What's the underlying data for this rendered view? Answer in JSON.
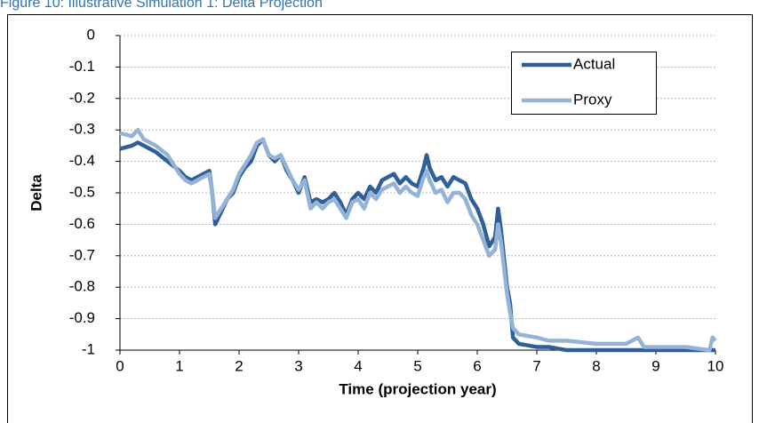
{
  "chart_data": {
    "type": "line",
    "title": "Figure 10: Illustrative Simulation 1: Delta Projection",
    "x_label": "Time (projection year)",
    "y_label": "Delta",
    "x": [
      0,
      0.2,
      0.3,
      0.4,
      0.6,
      0.8,
      1.0,
      1.1,
      1.2,
      1.4,
      1.5,
      1.55,
      1.6,
      1.7,
      1.8,
      1.9,
      2.0,
      2.1,
      2.2,
      2.3,
      2.4,
      2.5,
      2.6,
      2.7,
      2.8,
      2.9,
      3.0,
      3.1,
      3.2,
      3.3,
      3.4,
      3.5,
      3.6,
      3.7,
      3.8,
      3.9,
      4.0,
      4.1,
      4.2,
      4.3,
      4.4,
      4.5,
      4.6,
      4.7,
      4.8,
      4.9,
      5.0,
      5.1,
      5.15,
      5.2,
      5.3,
      5.4,
      5.5,
      5.6,
      5.7,
      5.8,
      5.9,
      6.0,
      6.1,
      6.2,
      6.3,
      6.35,
      6.4,
      6.5,
      6.55,
      6.6,
      6.7,
      7.0,
      7.2,
      7.5,
      8.0,
      8.5,
      8.7,
      8.8,
      9.0,
      9.5,
      9.9,
      9.95,
      10
    ],
    "series": [
      {
        "name": "Actual",
        "color": "#2f5f98",
        "values": [
          -0.36,
          -0.35,
          -0.34,
          -0.35,
          -0.37,
          -0.4,
          -0.43,
          -0.45,
          -0.46,
          -0.44,
          -0.43,
          -0.5,
          -0.6,
          -0.56,
          -0.52,
          -0.5,
          -0.45,
          -0.42,
          -0.4,
          -0.35,
          -0.33,
          -0.38,
          -0.4,
          -0.38,
          -0.43,
          -0.46,
          -0.5,
          -0.45,
          -0.53,
          -0.52,
          -0.53,
          -0.52,
          -0.5,
          -0.53,
          -0.57,
          -0.52,
          -0.5,
          -0.52,
          -0.48,
          -0.5,
          -0.46,
          -0.45,
          -0.44,
          -0.47,
          -0.45,
          -0.47,
          -0.48,
          -0.42,
          -0.38,
          -0.42,
          -0.46,
          -0.45,
          -0.48,
          -0.45,
          -0.46,
          -0.47,
          -0.52,
          -0.55,
          -0.6,
          -0.67,
          -0.64,
          -0.55,
          -0.62,
          -0.8,
          -0.85,
          -0.96,
          -0.98,
          -0.99,
          -0.99,
          -1,
          -1,
          -1,
          -1,
          -1,
          -1,
          -1,
          -1,
          -1,
          -1
        ]
      },
      {
        "name": "Proxy",
        "color": "#95b3d7",
        "values": [
          -0.31,
          -0.32,
          -0.3,
          -0.33,
          -0.35,
          -0.38,
          -0.44,
          -0.46,
          -0.47,
          -0.45,
          -0.44,
          -0.5,
          -0.58,
          -0.55,
          -0.52,
          -0.49,
          -0.44,
          -0.41,
          -0.38,
          -0.34,
          -0.33,
          -0.38,
          -0.39,
          -0.38,
          -0.42,
          -0.46,
          -0.49,
          -0.46,
          -0.55,
          -0.53,
          -0.55,
          -0.53,
          -0.52,
          -0.55,
          -0.58,
          -0.53,
          -0.52,
          -0.55,
          -0.5,
          -0.52,
          -0.49,
          -0.48,
          -0.47,
          -0.5,
          -0.48,
          -0.5,
          -0.51,
          -0.45,
          -0.43,
          -0.46,
          -0.5,
          -0.49,
          -0.53,
          -0.5,
          -0.5,
          -0.52,
          -0.57,
          -0.6,
          -0.65,
          -0.7,
          -0.68,
          -0.6,
          -0.66,
          -0.82,
          -0.88,
          -0.93,
          -0.95,
          -0.96,
          -0.97,
          -0.97,
          -0.98,
          -0.98,
          -0.96,
          -0.99,
          -0.99,
          -0.99,
          -1,
          -0.96,
          -0.97
        ]
      }
    ],
    "xlim": [
      0,
      10
    ],
    "xticks": [
      0,
      1,
      2,
      3,
      4,
      5,
      6,
      7,
      8,
      9,
      10
    ],
    "ylim": [
      -1,
      0
    ],
    "yticks": [
      0,
      -0.1,
      -0.2,
      -0.3,
      -0.4,
      -0.5,
      -0.6,
      -0.7,
      -0.8,
      -0.9,
      -1
    ],
    "grid": true,
    "legend": "upper right"
  }
}
